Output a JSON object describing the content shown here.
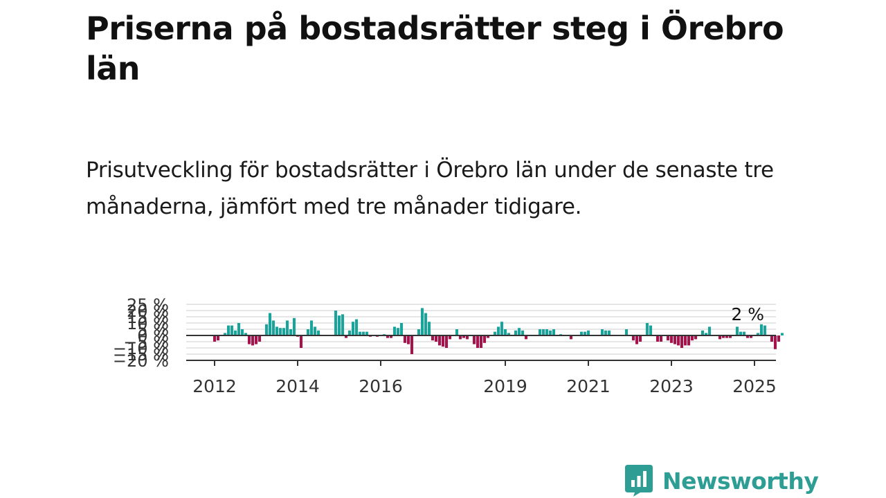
{
  "title": "Priserna på bostadsrätter steg i Örebro län",
  "subtitle": "Prisutveckling för bostadsrätter i Örebro län under de senaste tre månaderna, jämfört med tre månader tidigare.",
  "brand": {
    "name": "Newsworthy",
    "color": "#2e9e94",
    "icon": "bar-chart-speech-bubble-icon"
  },
  "chart_data": {
    "type": "bar",
    "start": "2012-01",
    "ylim": [
      -20,
      25
    ],
    "y_ticks": [
      {
        "v": 25,
        "label": "25 %"
      },
      {
        "v": 20,
        "label": "20 %"
      },
      {
        "v": 15,
        "label": "15 %"
      },
      {
        "v": 10,
        "label": "10 %"
      },
      {
        "v": 5,
        "label": "5 %"
      },
      {
        "v": 0,
        "label": "0 %"
      },
      {
        "v": -5,
        "label": "−5 %"
      },
      {
        "v": -10,
        "label": "−10 %"
      },
      {
        "v": -15,
        "label": "−15 %"
      },
      {
        "v": -20,
        "label": "−20 %"
      }
    ],
    "x_ticks": [
      {
        "label": "2012",
        "i": 0
      },
      {
        "label": "2014",
        "i": 24
      },
      {
        "label": "2016",
        "i": 48
      },
      {
        "label": "2019",
        "i": 84
      },
      {
        "label": "2021",
        "i": 108
      },
      {
        "label": "2023",
        "i": 132
      },
      {
        "label": "2025",
        "i": 156
      }
    ],
    "positive_color": "#1aa39a",
    "negative_color": "#a4134b",
    "zero_line_color": "#333333",
    "grid": true,
    "annotation": {
      "text": "2 %",
      "i": 157
    },
    "values": [
      -5,
      -4,
      0,
      2,
      8,
      8,
      4,
      10,
      5,
      2,
      -7,
      -8,
      -7,
      -5,
      0,
      9,
      18,
      12,
      7,
      6,
      6,
      12,
      5,
      14,
      -1,
      -10,
      0,
      5,
      12,
      7,
      4,
      0,
      0,
      0,
      0,
      20,
      16,
      17,
      -2,
      4,
      11,
      13,
      3,
      3,
      3,
      -1,
      0,
      -1,
      0,
      1,
      -2,
      -2,
      7,
      6,
      10,
      -6,
      -7,
      -15,
      0,
      5,
      22,
      18,
      11,
      -4,
      -5,
      -8,
      -9,
      -10,
      -3,
      0,
      5,
      -3,
      -2,
      -3,
      0,
      -7,
      -10,
      -10,
      -6,
      -2,
      0,
      3,
      7,
      11,
      5,
      2,
      0,
      4,
      6,
      4,
      -3,
      0,
      0,
      0,
      5,
      5,
      5,
      4,
      5,
      0,
      1,
      0,
      0,
      -3,
      0,
      0,
      3,
      3,
      4,
      0,
      0,
      0,
      5,
      4,
      4,
      0,
      0,
      0,
      0,
      5,
      0,
      -4,
      -7,
      -5,
      0,
      10,
      8,
      0,
      -5,
      -5,
      0,
      -4,
      -6,
      -7,
      -8,
      -10,
      -8,
      -8,
      -4,
      -3,
      0,
      4,
      2,
      7,
      0,
      0,
      -3,
      -2,
      -2,
      -2,
      0,
      7,
      3,
      3,
      -2,
      -2,
      0,
      2,
      9,
      8,
      0,
      -5,
      -11,
      -5,
      2
    ]
  }
}
